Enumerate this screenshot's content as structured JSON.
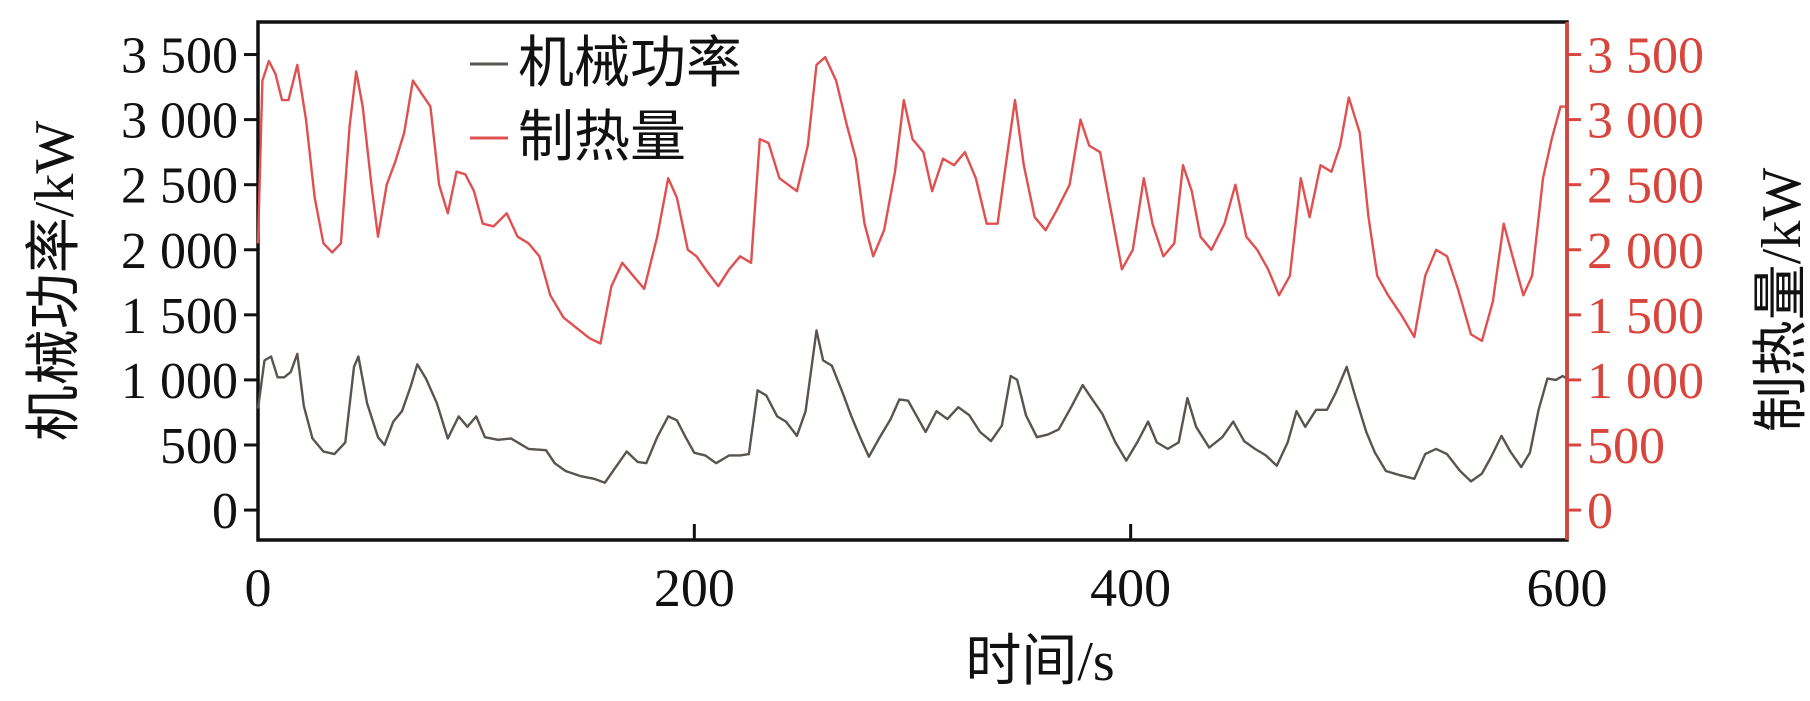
{
  "colors": {
    "power": "#5a5450",
    "heat": "#e05050",
    "axis": "#111111",
    "right_axis": "#d8453c"
  },
  "chart_data": {
    "type": "line",
    "xlabel": "时间/s",
    "ylabel_left": "机械功率/kW",
    "ylabel_right": "制热量/kW",
    "xlim": [
      0,
      600
    ],
    "ylim": [
      -230,
      3750
    ],
    "x_ticks": [
      0,
      200,
      400,
      600
    ],
    "x_tick_labels": [
      "0",
      "200",
      "400",
      "600"
    ],
    "y_ticks": [
      0,
      500,
      1000,
      1500,
      2000,
      2500,
      3000,
      3500
    ],
    "y_tick_labels": [
      "0",
      "500",
      "1 000",
      "1 500",
      "2 000",
      "2 500",
      "3 000",
      "3 500"
    ],
    "legend_position": "top-left",
    "series": [
      {
        "name": "机械功率",
        "axis": "left",
        "points": [
          [
            0,
            780
          ],
          [
            3,
            1150
          ],
          [
            6,
            1180
          ],
          [
            9,
            1020
          ],
          [
            12,
            1020
          ],
          [
            15,
            1060
          ],
          [
            18,
            1200
          ],
          [
            21,
            800
          ],
          [
            25,
            550
          ],
          [
            30,
            450
          ],
          [
            35,
            430
          ],
          [
            40,
            520
          ],
          [
            44,
            1100
          ],
          [
            46,
            1180
          ],
          [
            50,
            820
          ],
          [
            55,
            560
          ],
          [
            58,
            500
          ],
          [
            62,
            680
          ],
          [
            66,
            760
          ],
          [
            70,
            950
          ],
          [
            73,
            1120
          ],
          [
            77,
            1010
          ],
          [
            82,
            820
          ],
          [
            87,
            550
          ],
          [
            92,
            720
          ],
          [
            96,
            640
          ],
          [
            100,
            720
          ],
          [
            104,
            560
          ],
          [
            110,
            540
          ],
          [
            116,
            550
          ],
          [
            120,
            510
          ],
          [
            124,
            470
          ],
          [
            132,
            460
          ],
          [
            136,
            360
          ],
          [
            141,
            300
          ],
          [
            148,
            260
          ],
          [
            154,
            240
          ],
          [
            159,
            210
          ],
          [
            164,
            330
          ],
          [
            169,
            450
          ],
          [
            174,
            370
          ],
          [
            178,
            360
          ],
          [
            183,
            560
          ],
          [
            188,
            720
          ],
          [
            192,
            690
          ],
          [
            196,
            560
          ],
          [
            200,
            440
          ],
          [
            205,
            420
          ],
          [
            210,
            360
          ],
          [
            216,
            420
          ],
          [
            221,
            420
          ],
          [
            225,
            430
          ],
          [
            229,
            920
          ],
          [
            233,
            880
          ],
          [
            238,
            720
          ],
          [
            242,
            680
          ],
          [
            247,
            570
          ],
          [
            251,
            760
          ],
          [
            256,
            1380
          ],
          [
            259,
            1150
          ],
          [
            263,
            1110
          ],
          [
            268,
            900
          ],
          [
            272,
            720
          ],
          [
            276,
            560
          ],
          [
            280,
            410
          ],
          [
            285,
            560
          ],
          [
            290,
            700
          ],
          [
            294,
            850
          ],
          [
            298,
            840
          ],
          [
            302,
            720
          ],
          [
            306,
            600
          ],
          [
            311,
            760
          ],
          [
            316,
            700
          ],
          [
            321,
            790
          ],
          [
            326,
            730
          ],
          [
            331,
            600
          ],
          [
            336,
            530
          ],
          [
            341,
            650
          ],
          [
            345,
            1030
          ],
          [
            348,
            1000
          ],
          [
            352,
            730
          ],
          [
            357,
            560
          ],
          [
            362,
            580
          ],
          [
            367,
            620
          ],
          [
            373,
            800
          ],
          [
            378,
            960
          ],
          [
            382,
            860
          ],
          [
            387,
            740
          ],
          [
            393,
            520
          ],
          [
            398,
            380
          ],
          [
            403,
            520
          ],
          [
            408,
            680
          ],
          [
            412,
            520
          ],
          [
            417,
            470
          ],
          [
            422,
            520
          ],
          [
            426,
            860
          ],
          [
            430,
            640
          ],
          [
            436,
            480
          ],
          [
            442,
            560
          ],
          [
            447,
            680
          ],
          [
            452,
            530
          ],
          [
            457,
            470
          ],
          [
            462,
            420
          ],
          [
            467,
            340
          ],
          [
            472,
            520
          ],
          [
            476,
            760
          ],
          [
            480,
            640
          ],
          [
            485,
            770
          ],
          [
            490,
            770
          ],
          [
            494,
            900
          ],
          [
            499,
            1100
          ],
          [
            503,
            870
          ],
          [
            508,
            600
          ],
          [
            512,
            440
          ],
          [
            517,
            300
          ],
          [
            523,
            270
          ],
          [
            530,
            240
          ],
          [
            535,
            430
          ],
          [
            540,
            470
          ],
          [
            545,
            430
          ],
          [
            551,
            300
          ],
          [
            556,
            220
          ],
          [
            561,
            280
          ],
          [
            565,
            400
          ],
          [
            570,
            570
          ],
          [
            574,
            450
          ],
          [
            579,
            330
          ],
          [
            583,
            440
          ],
          [
            587,
            770
          ],
          [
            591,
            1010
          ],
          [
            595,
            1000
          ],
          [
            598,
            1030
          ],
          [
            600,
            1010
          ]
        ]
      },
      {
        "name": "制热量",
        "axis": "right",
        "points": [
          [
            0,
            2050
          ],
          [
            2,
            3300
          ],
          [
            5,
            3450
          ],
          [
            8,
            3350
          ],
          [
            11,
            3150
          ],
          [
            14,
            3150
          ],
          [
            18,
            3420
          ],
          [
            22,
            3000
          ],
          [
            26,
            2400
          ],
          [
            30,
            2050
          ],
          [
            34,
            1980
          ],
          [
            38,
            2050
          ],
          [
            42,
            2950
          ],
          [
            45,
            3370
          ],
          [
            48,
            3100
          ],
          [
            52,
            2500
          ],
          [
            55,
            2100
          ],
          [
            59,
            2500
          ],
          [
            63,
            2680
          ],
          [
            67,
            2900
          ],
          [
            71,
            3300
          ],
          [
            75,
            3200
          ],
          [
            79,
            3100
          ],
          [
            83,
            2500
          ],
          [
            87,
            2280
          ],
          [
            91,
            2600
          ],
          [
            95,
            2580
          ],
          [
            99,
            2450
          ],
          [
            103,
            2200
          ],
          [
            108,
            2180
          ],
          [
            114,
            2280
          ],
          [
            119,
            2100
          ],
          [
            124,
            2050
          ],
          [
            129,
            1950
          ],
          [
            134,
            1650
          ],
          [
            140,
            1480
          ],
          [
            146,
            1400
          ],
          [
            152,
            1320
          ],
          [
            157,
            1280
          ],
          [
            162,
            1720
          ],
          [
            167,
            1900
          ],
          [
            172,
            1800
          ],
          [
            177,
            1700
          ],
          [
            183,
            2100
          ],
          [
            188,
            2550
          ],
          [
            192,
            2400
          ],
          [
            197,
            2000
          ],
          [
            201,
            1950
          ],
          [
            206,
            1830
          ],
          [
            211,
            1720
          ],
          [
            216,
            1850
          ],
          [
            221,
            1950
          ],
          [
            226,
            1900
          ],
          [
            230,
            2850
          ],
          [
            234,
            2820
          ],
          [
            239,
            2550
          ],
          [
            243,
            2500
          ],
          [
            247,
            2450
          ],
          [
            252,
            2800
          ],
          [
            256,
            3420
          ],
          [
            260,
            3480
          ],
          [
            265,
            3300
          ],
          [
            270,
            2950
          ],
          [
            274,
            2700
          ],
          [
            278,
            2200
          ],
          [
            282,
            1950
          ],
          [
            287,
            2150
          ],
          [
            292,
            2600
          ],
          [
            296,
            3150
          ],
          [
            300,
            2850
          ],
          [
            305,
            2750
          ],
          [
            309,
            2450
          ],
          [
            314,
            2700
          ],
          [
            319,
            2650
          ],
          [
            324,
            2750
          ],
          [
            329,
            2550
          ],
          [
            334,
            2200
          ],
          [
            339,
            2200
          ],
          [
            344,
            2800
          ],
          [
            347,
            3150
          ],
          [
            351,
            2650
          ],
          [
            356,
            2250
          ],
          [
            361,
            2150
          ],
          [
            366,
            2300
          ],
          [
            372,
            2500
          ],
          [
            377,
            3000
          ],
          [
            381,
            2800
          ],
          [
            386,
            2750
          ],
          [
            391,
            2300
          ],
          [
            396,
            1850
          ],
          [
            401,
            2000
          ],
          [
            406,
            2550
          ],
          [
            410,
            2200
          ],
          [
            415,
            1950
          ],
          [
            420,
            2050
          ],
          [
            424,
            2650
          ],
          [
            428,
            2450
          ],
          [
            432,
            2100
          ],
          [
            437,
            2000
          ],
          [
            443,
            2200
          ],
          [
            448,
            2500
          ],
          [
            453,
            2100
          ],
          [
            458,
            2000
          ],
          [
            463,
            1850
          ],
          [
            468,
            1650
          ],
          [
            473,
            1800
          ],
          [
            478,
            2550
          ],
          [
            482,
            2250
          ],
          [
            487,
            2650
          ],
          [
            492,
            2600
          ],
          [
            496,
            2800
          ],
          [
            500,
            3170
          ],
          [
            505,
            2900
          ],
          [
            509,
            2250
          ],
          [
            513,
            1800
          ],
          [
            518,
            1650
          ],
          [
            524,
            1500
          ],
          [
            530,
            1330
          ],
          [
            535,
            1800
          ],
          [
            540,
            2000
          ],
          [
            545,
            1950
          ],
          [
            550,
            1700
          ],
          [
            556,
            1350
          ],
          [
            561,
            1300
          ],
          [
            566,
            1600
          ],
          [
            571,
            2200
          ],
          [
            575,
            1950
          ],
          [
            580,
            1650
          ],
          [
            584,
            1800
          ],
          [
            589,
            2550
          ],
          [
            593,
            2850
          ],
          [
            597,
            3100
          ],
          [
            600,
            3100
          ]
        ]
      }
    ]
  }
}
